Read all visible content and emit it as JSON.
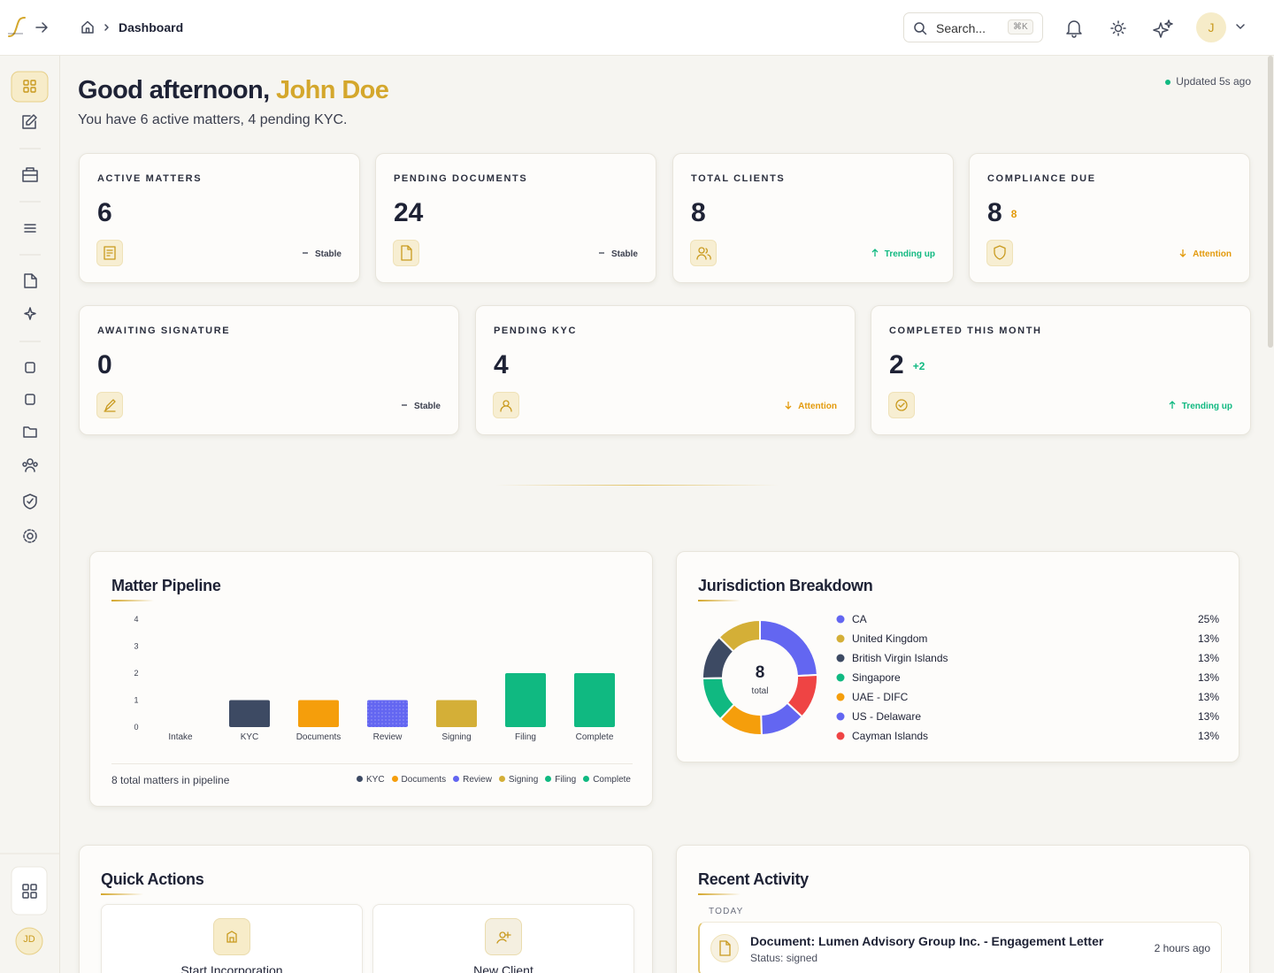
{
  "header": {
    "breadcrumb": "Dashboard",
    "search_placeholder": "Search...",
    "shortcut": "⌘K",
    "user_initial": "J"
  },
  "sidebar": {
    "user_initials": "JD"
  },
  "greeting": {
    "salutation": "Good afternoon,",
    "name": "John Doe",
    "summary": "You have 6 active matters, 4 pending KYC.",
    "updated": "Updated 5s ago"
  },
  "stats": [
    {
      "label": "ACTIVE MATTERS",
      "value": 6,
      "trend": "Stable",
      "trend_icon": "flat"
    },
    {
      "label": "PENDING DOCUMENTS",
      "value": 24,
      "trend": "Stable",
      "trend_icon": "flat"
    },
    {
      "label": "TOTAL CLIENTS",
      "value": 8,
      "trend": "Trending up",
      "trend_icon": "up"
    },
    {
      "label": "COMPLIANCE DUE",
      "value": 8,
      "badge": "8",
      "trend": "Attention",
      "trend_icon": "down"
    },
    {
      "label": "AWAITING SIGNATURE",
      "value": 0,
      "trend": "Stable",
      "trend_icon": "flat"
    },
    {
      "label": "PENDING KYC",
      "value": 4,
      "trend": "Attention",
      "trend_icon": "down"
    },
    {
      "label": "COMPLETED THIS MONTH",
      "value": 2,
      "badge": "+2",
      "trend": "Trending up",
      "trend_icon": "up"
    }
  ],
  "chart_data": [
    {
      "type": "bar",
      "title": "Matter Pipeline",
      "categories": [
        "Intake",
        "KYC",
        "Documents",
        "Review",
        "Signing",
        "Filing",
        "Complete"
      ],
      "values": [
        0,
        1,
        1,
        1,
        1,
        2,
        2
      ],
      "colors": [
        "#94a3b8",
        "#3d4a63",
        "#f59e0b",
        "#6366f1",
        "#d4af37",
        "#10b981",
        "#10b981"
      ],
      "ylim": [
        0,
        4
      ],
      "yticks": [
        0,
        1,
        2,
        3,
        4
      ],
      "grid": false,
      "footer": "8 total matters in pipeline"
    },
    {
      "type": "pie",
      "donut": true,
      "title": "Jurisdiction Breakdown",
      "center_value": 8,
      "center_label": "total",
      "series": [
        {
          "name": "CA",
          "color": "#6366f1",
          "value": 25,
          "value_label": "25%"
        },
        {
          "name": "United Kingdom",
          "color": "#d4af37",
          "value": 13,
          "value_label": "13%"
        },
        {
          "name": "British Virgin Islands",
          "color": "#3d4a63",
          "value": 13,
          "value_label": "13%"
        },
        {
          "name": "Singapore",
          "color": "#10b981",
          "value": 13,
          "value_label": "13%"
        },
        {
          "name": "UAE - DIFC",
          "color": "#f59e0b",
          "value": 13,
          "value_label": "13%"
        },
        {
          "name": "US - Delaware",
          "color": "#6366f1",
          "value": 13,
          "value_label": "13%"
        },
        {
          "name": "Cayman Islands",
          "color": "#ef4444",
          "value": 13,
          "value_label": "13%"
        }
      ]
    }
  ],
  "quick_actions": {
    "title": "Quick Actions",
    "items": [
      "Start Incorporation",
      "New Client"
    ]
  },
  "recent_activity": {
    "title": "Recent Activity",
    "group": "TODAY",
    "items": [
      {
        "title": "Document: Lumen Advisory Group Inc. - Engagement Letter",
        "status": "Status: signed",
        "time": "2 hours ago"
      }
    ]
  }
}
